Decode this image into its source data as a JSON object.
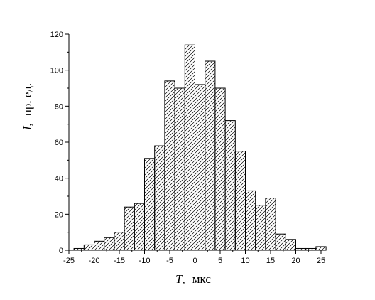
{
  "chart_data": {
    "type": "bar",
    "subtype": "histogram",
    "title": "",
    "xlabel": {
      "var": "T",
      "sep": ",",
      "unit": "мкс"
    },
    "ylabel": {
      "var": "I",
      "sep": ",",
      "unit": "пр. ед."
    },
    "xlim": [
      -25,
      25
    ],
    "ylim": [
      0,
      120
    ],
    "xticks": [
      -25,
      -20,
      -15,
      -10,
      -5,
      0,
      5,
      10,
      15,
      20,
      25
    ],
    "yticks": [
      0,
      20,
      40,
      60,
      80,
      100,
      120
    ],
    "bin_width": 2,
    "bin_start": -24,
    "values": [
      1,
      3,
      5,
      7,
      10,
      24,
      26,
      51,
      58,
      94,
      90,
      114,
      92,
      105,
      90,
      72,
      55,
      33,
      25,
      29,
      9,
      6,
      1,
      1,
      2
    ],
    "grid": false,
    "legend": false,
    "fill_pattern": "diagonal-hatch",
    "colors": {
      "bar_stroke": "#000000",
      "hatch": "#000000",
      "background": "#ffffff"
    }
  }
}
